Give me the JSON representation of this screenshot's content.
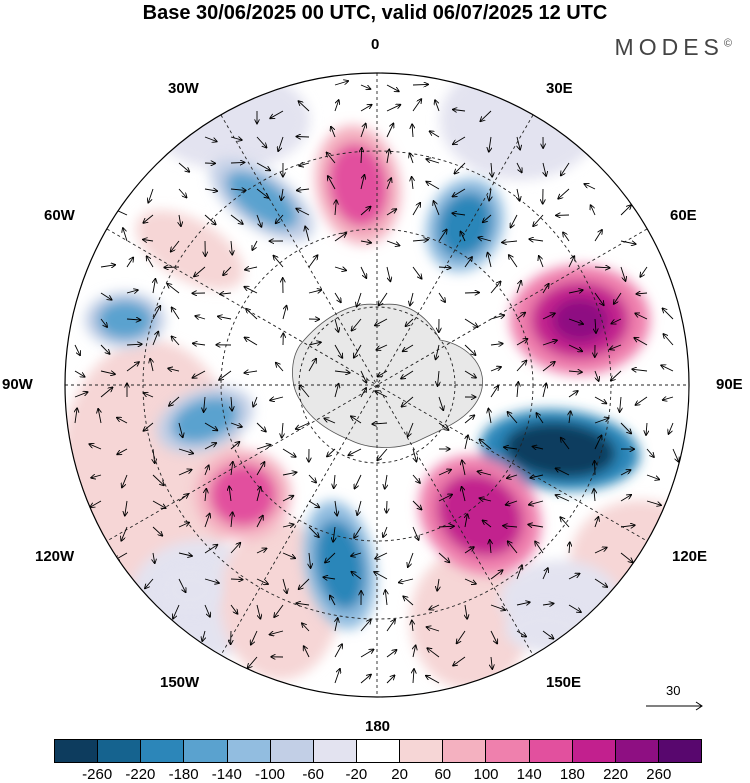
{
  "title": "Base 30/06/2025 00 UTC, valid 06/07/2025 12 UTC",
  "brand": "MODES",
  "brand_mark": "©",
  "longitude_labels": {
    "lon_0": "0",
    "lon_30e": "30E",
    "lon_60e": "60E",
    "lon_90e": "90E",
    "lon_120e": "120E",
    "lon_150e": "150E",
    "lon_180": "180",
    "lon_150w": "150W",
    "lon_120w": "120W",
    "lon_90w": "90W",
    "lon_60w": "60W",
    "lon_30w": "30W"
  },
  "reference_vector": {
    "label": "30"
  },
  "colorbar": {
    "colors": [
      "#0d3c5e",
      "#15638f",
      "#2c86b9",
      "#5aa2cf",
      "#92bde0",
      "#c2cfe6",
      "#e3e3f0",
      "#ffffff",
      "#f6d6d6",
      "#f4b1c0",
      "#ef80ad",
      "#e2509e",
      "#c2208e",
      "#8e0f82",
      "#58076e"
    ],
    "tick_labels": [
      "-260",
      "-220",
      "-180",
      "-140",
      "-100",
      "-60",
      "-20",
      "20",
      "60",
      "100",
      "140",
      "180",
      "220",
      "260"
    ]
  },
  "anomaly_centers": [
    {
      "value": -140,
      "color": "#92bde0"
    },
    {
      "value": 140,
      "color": "#ef80ad"
    },
    {
      "value": -140,
      "color": "#5aa2cf"
    },
    {
      "value": -100,
      "color": "#92bde0"
    },
    {
      "value": 180,
      "color": "#e2509e"
    },
    {
      "value": -220,
      "color": "#15638f"
    },
    {
      "value": 140,
      "color": "#ef80ad"
    },
    {
      "value": -140,
      "color": "#5aa2cf"
    },
    {
      "value": 160,
      "color": "#e2509e"
    },
    {
      "value": -100,
      "color": "#92bde0"
    },
    {
      "value": -60,
      "color": "#c2cfe6"
    },
    {
      "value": 60,
      "color": "#f4b1c0"
    },
    {
      "value": 40,
      "color": "#f6d6d6"
    },
    {
      "value": -60,
      "color": "#c2cfe6"
    }
  ]
}
